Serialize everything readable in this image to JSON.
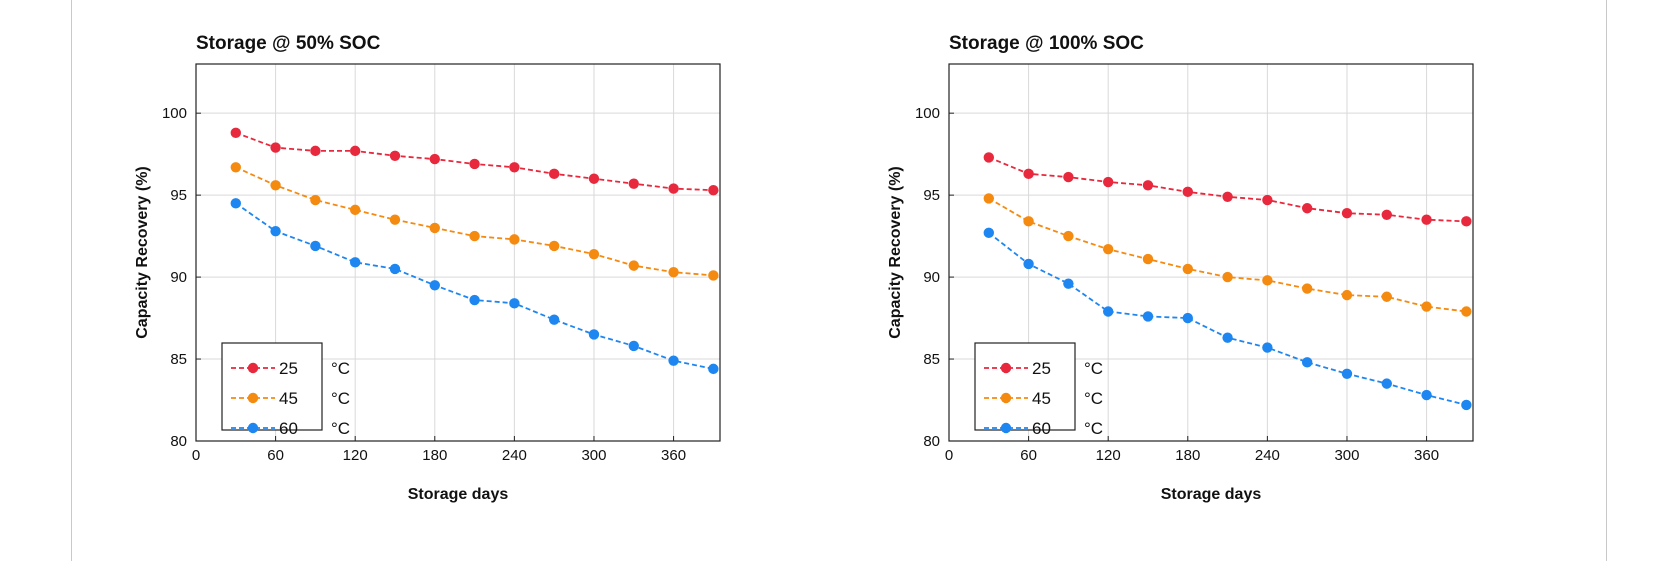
{
  "colors": {
    "c25": "#e8283c",
    "c45": "#f58a11",
    "c60": "#1e86f0"
  },
  "chart_data": [
    {
      "type": "line",
      "title": "Storage @ 50% SOC",
      "xlabel": "Storage days",
      "ylabel": "Capacity Recovery (%)",
      "xlim": [
        0,
        395
      ],
      "ylim": [
        80,
        103
      ],
      "xticks": [
        0,
        60,
        120,
        180,
        240,
        300,
        360
      ],
      "yticks": [
        80,
        85,
        90,
        95,
        100
      ],
      "grid": true,
      "legend_position": "bottom-left",
      "x": [
        30,
        60,
        90,
        120,
        150,
        180,
        210,
        240,
        270,
        300,
        330,
        360,
        390
      ],
      "series": [
        {
          "name": "25",
          "unit": "°C",
          "color": "#e8283c",
          "values": [
            98.8,
            97.9,
            97.7,
            97.7,
            97.4,
            97.2,
            96.9,
            96.7,
            96.3,
            96.0,
            95.7,
            95.4,
            95.3
          ]
        },
        {
          "name": "45",
          "unit": "°C",
          "color": "#f58a11",
          "values": [
            96.7,
            95.6,
            94.7,
            94.1,
            93.5,
            93.0,
            92.5,
            92.3,
            91.9,
            91.4,
            90.7,
            90.3,
            90.1
          ]
        },
        {
          "name": "60",
          "unit": "°C",
          "color": "#1e86f0",
          "values": [
            94.5,
            92.8,
            91.9,
            90.9,
            90.5,
            89.5,
            88.6,
            88.4,
            87.4,
            86.5,
            85.8,
            84.9,
            84.4
          ]
        }
      ]
    },
    {
      "type": "line",
      "title": "Storage @ 100% SOC",
      "xlabel": "Storage days",
      "ylabel": "Capacity Recovery (%)",
      "xlim": [
        0,
        395
      ],
      "ylim": [
        80,
        103
      ],
      "xticks": [
        0,
        60,
        120,
        180,
        240,
        300,
        360
      ],
      "yticks": [
        80,
        85,
        90,
        95,
        100
      ],
      "grid": true,
      "legend_position": "bottom-left",
      "x": [
        30,
        60,
        90,
        120,
        150,
        180,
        210,
        240,
        270,
        300,
        330,
        360,
        390
      ],
      "series": [
        {
          "name": "25",
          "unit": "°C",
          "color": "#e8283c",
          "values": [
            97.3,
            96.3,
            96.1,
            95.8,
            95.6,
            95.2,
            94.9,
            94.7,
            94.2,
            93.9,
            93.8,
            93.5,
            93.4
          ]
        },
        {
          "name": "45",
          "unit": "°C",
          "color": "#f58a11",
          "values": [
            94.8,
            93.4,
            92.5,
            91.7,
            91.1,
            90.5,
            90.0,
            89.8,
            89.3,
            88.9,
            88.8,
            88.2,
            87.9
          ]
        },
        {
          "name": "60",
          "unit": "°C",
          "color": "#1e86f0",
          "values": [
            92.7,
            90.8,
            89.6,
            87.9,
            87.6,
            87.5,
            86.3,
            85.7,
            84.8,
            84.1,
            83.5,
            82.8,
            82.2
          ]
        }
      ]
    }
  ]
}
